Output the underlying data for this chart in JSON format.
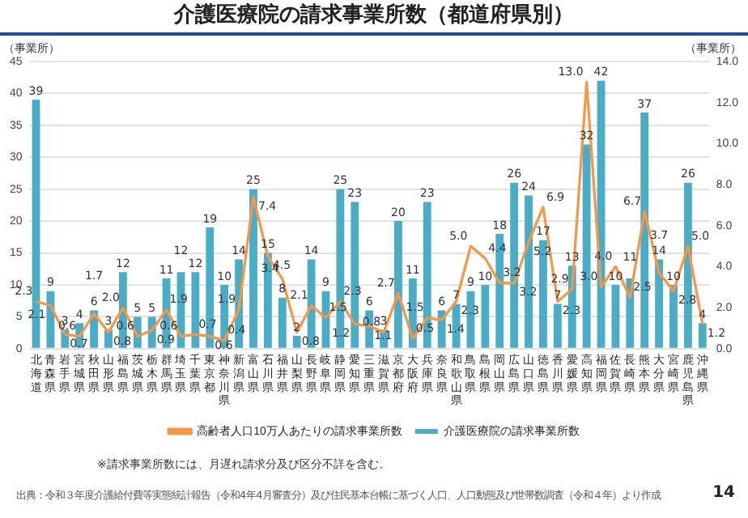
{
  "chart_data": {
    "type": "bar",
    "title": "介護医療院の請求事業所数（都道府県別）",
    "ylabel": "（事業所）",
    "y2label": "（事業所）",
    "categories": [
      "北海道",
      "青森県",
      "岩手県",
      "宮城県",
      "秋田県",
      "山形県",
      "福島県",
      "茨城県",
      "栃木県",
      "群馬県",
      "埼玉県",
      "千葉県",
      "東京都",
      "神奈川県",
      "新潟県",
      "富山県",
      "石川県",
      "福井県",
      "山梨県",
      "長野県",
      "岐阜県",
      "静岡県",
      "愛知県",
      "三重県",
      "滋賀県",
      "京都府",
      "大阪府",
      "兵庫県",
      "奈良県",
      "和歌山県",
      "鳥取県",
      "島根県",
      "岡山県",
      "広島県",
      "山口県",
      "徳島県",
      "香川県",
      "愛媛県",
      "高知県",
      "福岡県",
      "佐賀県",
      "長崎県",
      "熊本県",
      "大分県",
      "宮崎県",
      "鹿児島県",
      "沖縄県"
    ],
    "series": [
      {
        "name": "介護医療院の請求事業所数",
        "color": "#4bacc6",
        "values": [
          39,
          9,
          3,
          4,
          6,
          3,
          12,
          5,
          5,
          11,
          12,
          12,
          19,
          10,
          14,
          25,
          15,
          8,
          2,
          14,
          9,
          25,
          23,
          6,
          3,
          20,
          11,
          23,
          6,
          7,
          9,
          10,
          18,
          26,
          24,
          17,
          7,
          13,
          32,
          42,
          10,
          11,
          37,
          14,
          10,
          26,
          4
        ]
      },
      {
        "name": "高齢者人口10万人あたりの請求事業所数",
        "type": "line",
        "axis": "y2",
        "color": "#f79646",
        "values": [
          2.3,
          2.1,
          0.7,
          0.6,
          1.7,
          0.8,
          2.0,
          0.6,
          0.9,
          1.9,
          0.6,
          0.7,
          0.6,
          0.4,
          1.9,
          7.4,
          4.5,
          3.4,
          0.8,
          2.1,
          1.5,
          2.3,
          1.2,
          1.1,
          0.8,
          2.7,
          0.5,
          1.5,
          1.4,
          2.3,
          5.0,
          4.4,
          3.2,
          3.2,
          5.2,
          6.9,
          2.3,
          2.9,
          13.0,
          3.0,
          4.0,
          2.5,
          6.7,
          3.7,
          2.8,
          5.0,
          1.2
        ],
        "value_labels": [
          "2.3",
          "2.1",
          "0.7",
          "0.6",
          "1.7",
          "0.8",
          "2.0",
          "0.6",
          "0.9",
          "1.9",
          "0.6",
          "0.7",
          "0.6",
          "0.4",
          "1.9",
          "7.4",
          "4.5",
          "3.4",
          "0.8",
          "2.1",
          "1.5",
          "2.3",
          "1.2",
          "1.1",
          "0.8",
          "2.7",
          "0.5",
          "1.5",
          "1.4",
          "2.3",
          "5.0",
          "4.4",
          "3.2",
          "3.2",
          "5.2",
          "6.9",
          "2.3",
          "2.9",
          "13.0",
          "3.0",
          "4.0",
          "2.5",
          "6.7",
          "3.7",
          "2.8",
          "5.0",
          "1.2"
        ]
      }
    ],
    "ylim": [
      0,
      45
    ],
    "yticks": [
      0,
      5,
      10,
      15,
      20,
      25,
      30,
      35,
      40,
      45
    ],
    "y2lim": [
      0,
      14
    ],
    "y2ticks": [
      {
        "value": 0,
        "label": "0.0"
      },
      {
        "value": 2,
        "label": "2.0"
      },
      {
        "value": 4,
        "label": "4.0"
      },
      {
        "value": 6,
        "label": "6.0"
      },
      {
        "value": 8,
        "label": "8.0"
      },
      {
        "value": 10,
        "label": "10.0"
      },
      {
        "value": 12,
        "label": "12.0"
      },
      {
        "value": 14,
        "label": "14.0"
      }
    ],
    "grid": "y",
    "legend": "bottom",
    "data_labels": true,
    "marker": "none",
    "annotations": [
      "※請求事業所数には、月遅れ請求分及び区分不詳を含む。",
      "出典：令和３年度介護給付費等実態統計報告（令和4年4月審査分）及び住民基本台帳に基づく人口、人口動態及び世帯数調査（令和４年）より作成",
      "14"
    ]
  }
}
